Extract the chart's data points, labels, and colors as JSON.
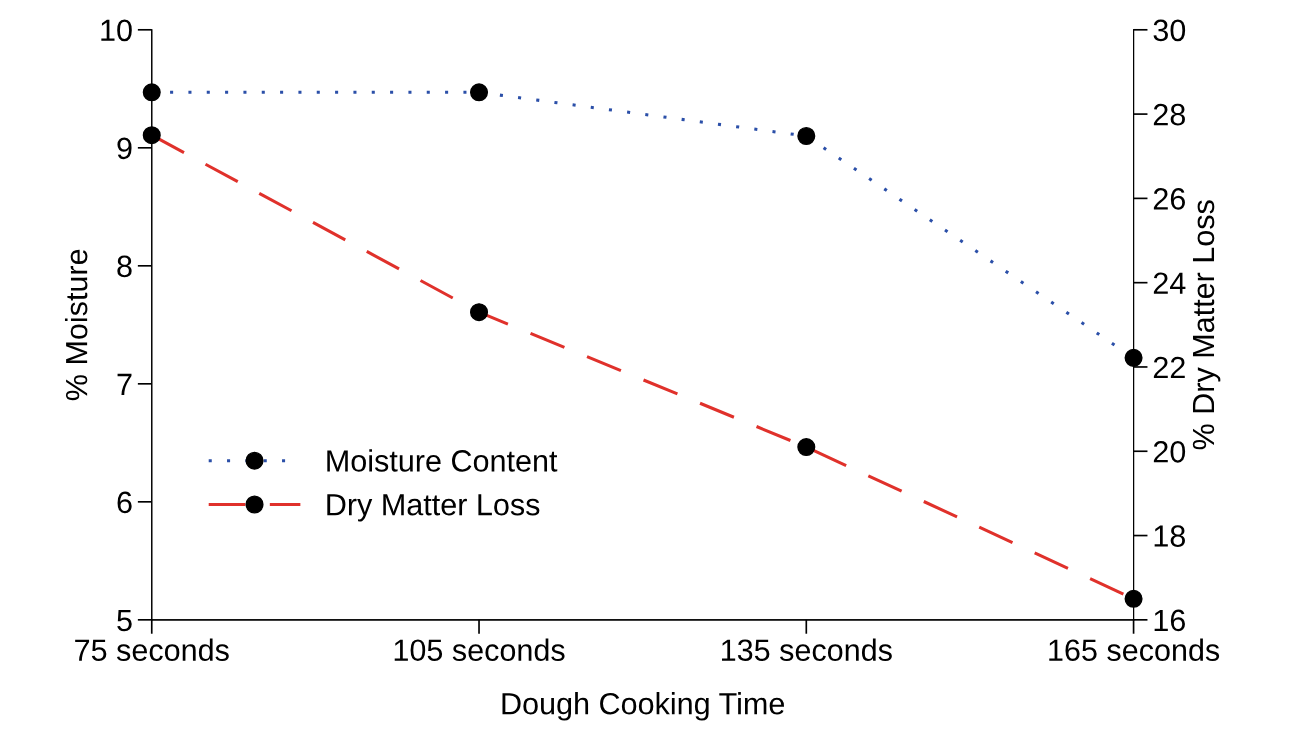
{
  "chart_data": {
    "type": "line",
    "xlabel": "Dough Cooking Time",
    "ylabel": "% Moisture",
    "y2label": "% Dry Matter Loss",
    "categories": [
      "75 seconds",
      "105 seconds",
      "135 seconds",
      "165 seconds"
    ],
    "series": [
      {
        "name": "Moisture Content",
        "color": "#2b4fa8",
        "values": [
          9.47,
          9.47,
          9.1,
          7.22
        ],
        "line_style": "dotted"
      },
      {
        "name": "Dry Matter Loss",
        "color": "#e0312b",
        "values": [
          27.5,
          23.3,
          20.1,
          16.5
        ],
        "line_style": "dashed",
        "axis": "y2"
      }
    ],
    "ylim": [
      5,
      10
    ],
    "yticks": [
      5,
      6,
      7,
      8,
      9,
      10
    ],
    "y2lim": [
      16,
      30
    ],
    "y2ticks": [
      16,
      18,
      20,
      22,
      24,
      26,
      28,
      30
    ],
    "marker": "circle",
    "grid": false,
    "legend": "bottom left"
  }
}
